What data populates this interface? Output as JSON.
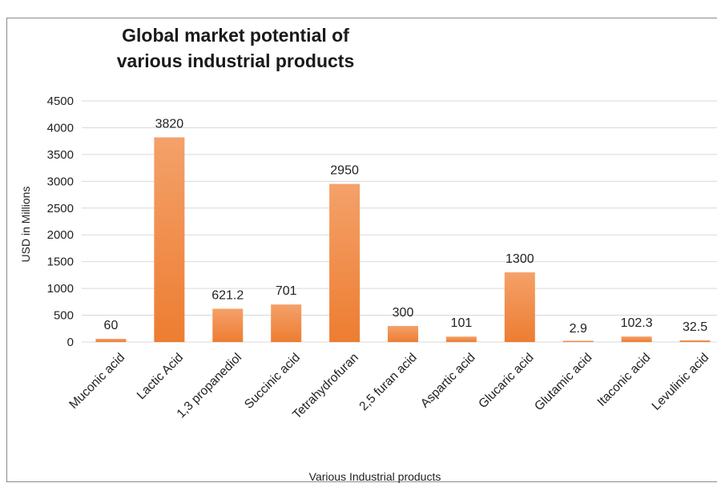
{
  "chart_data": {
    "type": "bar",
    "title_lines": [
      "Global market potential of",
      "various industrial products"
    ],
    "xlabel": "Various Industrial products",
    "ylabel": "USD in Millions",
    "ylim": [
      0,
      4500
    ],
    "yticks": [
      0,
      500,
      1000,
      1500,
      2000,
      2500,
      3000,
      3500,
      4000,
      4500
    ],
    "grid": true,
    "categories": [
      "Muconic acid",
      "Lactic Acid",
      "1,3 propanediol",
      "Succinic acid",
      "Tetrahydrofuran",
      "2,5 furan acid",
      "Aspartic acid",
      "Glucaric acid",
      "Glutamic acid",
      "Itaconic acid",
      "Levulinic acid"
    ],
    "values": [
      60,
      3820,
      621.2,
      701,
      2950,
      300,
      101,
      1300,
      2.9,
      102.3,
      32.5
    ],
    "data_labels": [
      "60",
      "3820",
      "621.2",
      "701",
      "2950",
      "300",
      "101",
      "1300",
      "2.9",
      "102.3",
      "32.5"
    ],
    "bar_color": "#ed7d31",
    "bar_color_light": "#f4a16a",
    "grid_color": "#d9d9d9"
  }
}
